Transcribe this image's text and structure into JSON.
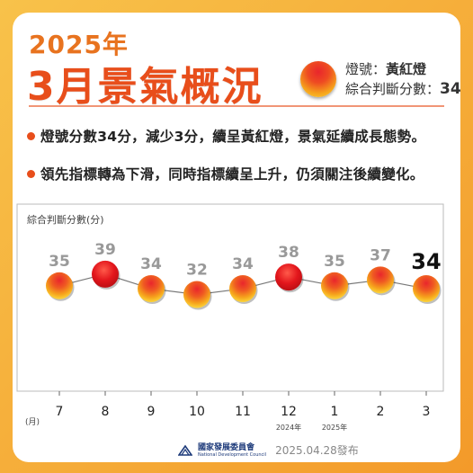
{
  "header": {
    "year": "2025年",
    "title": "3月景氣概況",
    "light_label": "燈號：",
    "light_value": "黃紅燈",
    "score_label": "綜合判斷分數：",
    "score_value": "34"
  },
  "bullets": [
    "燈號分數34分，減少3分，續呈黃紅燈，景氣延續成長態勢。",
    "領先指標轉為下滑，同時指標續呈上升，仍須關注後續變化。"
  ],
  "chart_data": {
    "type": "line",
    "ylabel": "綜合判斷分數(分)",
    "xlabel": "(月)",
    "categories": [
      "7",
      "8",
      "9",
      "10",
      "11",
      "12",
      "1",
      "2",
      "3"
    ],
    "year_labels": [
      {
        "index": 5,
        "text": "2024年"
      },
      {
        "index": 6,
        "text": "2025年"
      }
    ],
    "series": [
      {
        "values": [
          35,
          39,
          34,
          32,
          34,
          38,
          35,
          37,
          34
        ]
      }
    ],
    "light_colors": [
      "yellow-red",
      "red",
      "yellow-red",
      "yellow-red",
      "yellow-red",
      "red",
      "yellow-red",
      "yellow-red",
      "yellow-red"
    ],
    "highlight_last": true
  },
  "colors": {
    "accent": "#e84e1b",
    "year": "#e8731f",
    "background": "#f6ae34"
  },
  "footer": {
    "org_name": "國家發展委員會",
    "org_name_en": "National Development Council",
    "date": "2025.04.28發布"
  }
}
